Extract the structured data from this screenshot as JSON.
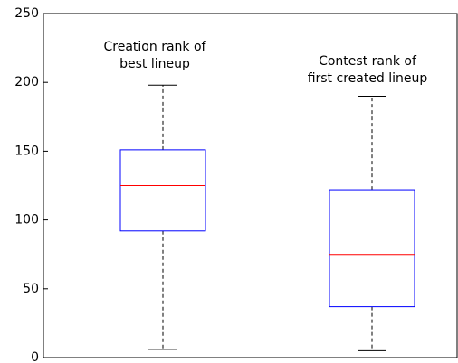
{
  "chart_data": {
    "type": "box",
    "boxes": [
      {
        "label_lines": [
          "Creation rank of",
          "best lineup"
        ],
        "whisker_low": 6,
        "q1": 92,
        "median": 125,
        "q3": 151,
        "whisker_high": 198
      },
      {
        "label_lines": [
          "Contest rank of",
          "first created lineup"
        ],
        "whisker_low": 5,
        "q1": 37,
        "median": 75,
        "q3": 122,
        "whisker_high": 190
      }
    ],
    "box_color": "#0000ff",
    "median_color": "#ff0000",
    "whisker_color": "#000000",
    "ylim": [
      0,
      250
    ],
    "yticks": [
      0,
      50,
      100,
      150,
      200,
      250
    ]
  }
}
